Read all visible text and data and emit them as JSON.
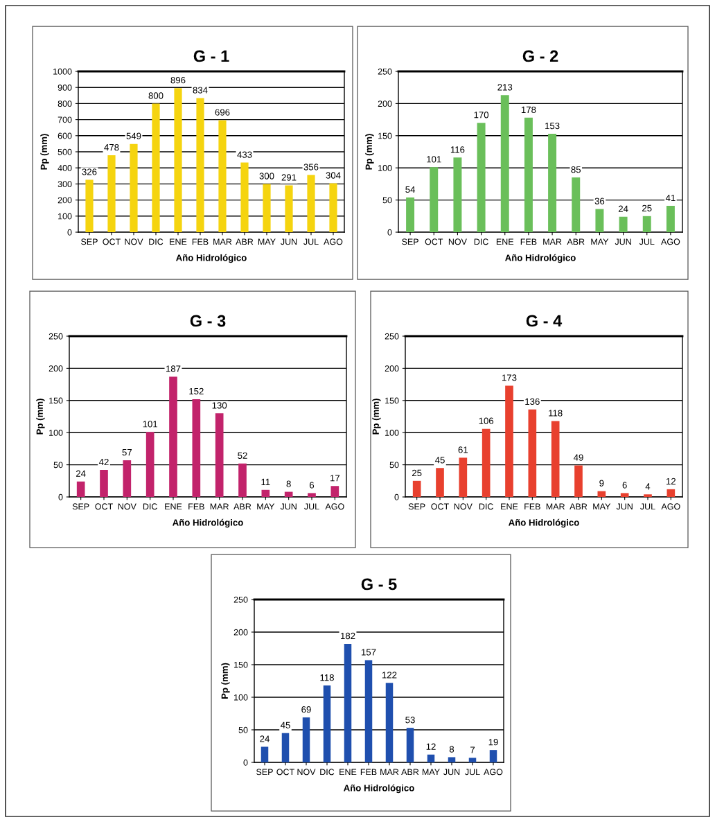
{
  "chart_data": [
    {
      "type": "bar",
      "title": "G - 1",
      "xlabel": "Año Hidrológico",
      "ylabel": "Pp (mm)",
      "categories": [
        "SEP",
        "OCT",
        "NOV",
        "DIC",
        "ENE",
        "FEB",
        "MAR",
        "ABR",
        "MAY",
        "JUN",
        "JUL",
        "AGO"
      ],
      "values": [
        326,
        478,
        549,
        800,
        896,
        834,
        696,
        433,
        300,
        291,
        356,
        304
      ],
      "color": "#f5d40f",
      "ylim": [
        0,
        1000
      ],
      "yticks": [
        0,
        100,
        200,
        300,
        400,
        500,
        600,
        700,
        800,
        900,
        1000
      ],
      "grid": "y",
      "data_labels": true
    },
    {
      "type": "bar",
      "title": "G - 2",
      "xlabel": "Año Hidrológico",
      "ylabel": "Pp (mm)",
      "categories": [
        "SEP",
        "OCT",
        "NOV",
        "DIC",
        "ENE",
        "FEB",
        "MAR",
        "ABR",
        "MAY",
        "JUN",
        "JUL",
        "AGO"
      ],
      "values": [
        54,
        101,
        116,
        170,
        213,
        178,
        153,
        85,
        36,
        24,
        25,
        41
      ],
      "color": "#6abf5a",
      "ylim": [
        0,
        250
      ],
      "yticks": [
        0,
        50,
        100,
        150,
        200,
        250
      ],
      "grid": "y",
      "data_labels": true
    },
    {
      "type": "bar",
      "title": "G - 3",
      "xlabel": "Año Hidrológico",
      "ylabel": "Pp (mm)",
      "categories": [
        "SEP",
        "OCT",
        "NOV",
        "DIC",
        "ENE",
        "FEB",
        "MAR",
        "ABR",
        "MAY",
        "JUN",
        "JUL",
        "AGO"
      ],
      "values": [
        24,
        42,
        57,
        101,
        187,
        152,
        130,
        52,
        11,
        8,
        6,
        17
      ],
      "color": "#c2236b",
      "ylim": [
        0,
        250
      ],
      "yticks": [
        0,
        50,
        100,
        150,
        200,
        250
      ],
      "grid": "y",
      "data_labels": true
    },
    {
      "type": "bar",
      "title": "G - 4",
      "xlabel": "Año Hidrológico",
      "ylabel": "Pp (mm)",
      "categories": [
        "SEP",
        "OCT",
        "NOV",
        "DIC",
        "ENE",
        "FEB",
        "MAR",
        "ABR",
        "MAY",
        "JUN",
        "JUL",
        "AGO"
      ],
      "values": [
        25,
        45,
        61,
        106,
        173,
        136,
        118,
        49,
        9,
        6,
        4,
        12
      ],
      "color": "#e8402e",
      "ylim": [
        0,
        250
      ],
      "yticks": [
        0,
        50,
        100,
        150,
        200,
        250
      ],
      "grid": "y",
      "data_labels": true
    },
    {
      "type": "bar",
      "title": "G - 5",
      "xlabel": "Año Hidrológico",
      "ylabel": "Pp (mm)",
      "categories": [
        "SEP",
        "OCT",
        "NOV",
        "DIC",
        "ENE",
        "FEB",
        "MAR",
        "ABR",
        "MAY",
        "JUN",
        "JUL",
        "AGO"
      ],
      "values": [
        24,
        45,
        69,
        118,
        182,
        157,
        122,
        53,
        12,
        8,
        7,
        19
      ],
      "color": "#1f4fae",
      "ylim": [
        0,
        250
      ],
      "yticks": [
        0,
        50,
        100,
        150,
        200,
        250
      ],
      "grid": "y",
      "data_labels": true
    }
  ]
}
